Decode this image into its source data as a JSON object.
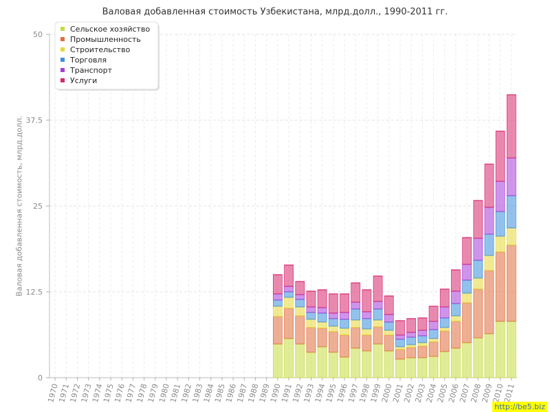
{
  "chart_data": {
    "type": "bar",
    "stacked": true,
    "title": "Валовая добавленная стоимость Узбекистана, млрд.долл., 1990-2011 гг.",
    "ylabel": "Валовая добавленная стоимость, млрд.долл.",
    "xlabel": "",
    "ylim": [
      0,
      50
    ],
    "yticks": [
      "0",
      "12.5",
      "25",
      "37.5",
      "50"
    ],
    "grid": true,
    "legend_position": "top-left",
    "categories": [
      "1970",
      "1971",
      "1972",
      "1973",
      "1974",
      "1975",
      "1976",
      "1977",
      "1978",
      "1979",
      "1980",
      "1981",
      "1982",
      "1983",
      "1984",
      "1985",
      "1986",
      "1987",
      "1988",
      "1989",
      "1990",
      "1991",
      "1992",
      "1993",
      "1994",
      "1995",
      "1996",
      "1997",
      "1998",
      "1999",
      "2000",
      "2001",
      "2002",
      "2003",
      "2004",
      "2005",
      "2006",
      "2007",
      "2008",
      "2009",
      "2010",
      "2011"
    ],
    "series": [
      {
        "name": "Сельское хозяйство",
        "color": "#c8dc40",
        "values": [
          null,
          null,
          null,
          null,
          null,
          null,
          null,
          null,
          null,
          null,
          null,
          null,
          null,
          null,
          null,
          null,
          null,
          null,
          null,
          null,
          4.9,
          5.7,
          4.9,
          3.7,
          4.5,
          3.7,
          3.0,
          4.3,
          3.9,
          4.9,
          3.9,
          2.7,
          2.9,
          2.9,
          3.1,
          3.8,
          4.3,
          5.1,
          5.8,
          6.4,
          8.2,
          8.2
        ]
      },
      {
        "name": "Промышленность",
        "color": "#e06e3c",
        "values": [
          null,
          null,
          null,
          null,
          null,
          null,
          null,
          null,
          null,
          null,
          null,
          null,
          null,
          null,
          null,
          null,
          null,
          null,
          null,
          null,
          4.0,
          4.4,
          4.1,
          3.6,
          2.7,
          3.0,
          3.2,
          3.0,
          2.3,
          2.5,
          2.3,
          1.4,
          1.5,
          1.7,
          2.1,
          3.0,
          3.9,
          5.8,
          7.1,
          9.2,
          10.1,
          11.1
        ]
      },
      {
        "name": "Строительство",
        "color": "#e8d838",
        "values": [
          null,
          null,
          null,
          null,
          null,
          null,
          null,
          null,
          null,
          null,
          null,
          null,
          null,
          null,
          null,
          null,
          null,
          null,
          null,
          null,
          1.5,
          1.6,
          1.3,
          1.2,
          0.9,
          0.8,
          1.0,
          1.1,
          0.9,
          1.0,
          0.7,
          0.4,
          0.4,
          0.5,
          0.5,
          0.5,
          0.8,
          1.4,
          1.6,
          2.2,
          2.3,
          2.5
        ]
      },
      {
        "name": "Торговля",
        "color": "#3b8fdc",
        "values": [
          null,
          null,
          null,
          null,
          null,
          null,
          null,
          null,
          null,
          null,
          null,
          null,
          null,
          null,
          null,
          null,
          null,
          null,
          null,
          null,
          0.9,
          0.8,
          1.1,
          1.0,
          1.3,
          1.1,
          1.3,
          1.6,
          1.5,
          1.6,
          1.2,
          1.1,
          1.1,
          1.0,
          1.3,
          1.4,
          1.8,
          1.9,
          2.6,
          3.1,
          3.6,
          4.7
        ]
      },
      {
        "name": "Транспорт",
        "color": "#a83ed8",
        "values": [
          null,
          null,
          null,
          null,
          null,
          null,
          null,
          null,
          null,
          null,
          null,
          null,
          null,
          null,
          null,
          null,
          null,
          null,
          null,
          null,
          0.9,
          0.8,
          0.7,
          0.8,
          0.8,
          0.8,
          1.0,
          1.0,
          1.0,
          1.1,
          1.1,
          0.6,
          0.7,
          0.8,
          1.2,
          1.6,
          1.8,
          2.3,
          3.2,
          3.9,
          4.4,
          5.5
        ]
      },
      {
        "name": "Услуги",
        "color": "#d82870",
        "values": [
          null,
          null,
          null,
          null,
          null,
          null,
          null,
          null,
          null,
          null,
          null,
          null,
          null,
          null,
          null,
          null,
          null,
          null,
          null,
          null,
          2.8,
          3.1,
          1.9,
          2.3,
          2.6,
          2.8,
          2.7,
          2.8,
          3.2,
          3.7,
          2.7,
          2.1,
          2.0,
          1.8,
          2.2,
          2.6,
          3.1,
          3.9,
          5.5,
          6.3,
          7.3,
          9.2
        ]
      }
    ]
  },
  "watermark": "http://be5.biz"
}
